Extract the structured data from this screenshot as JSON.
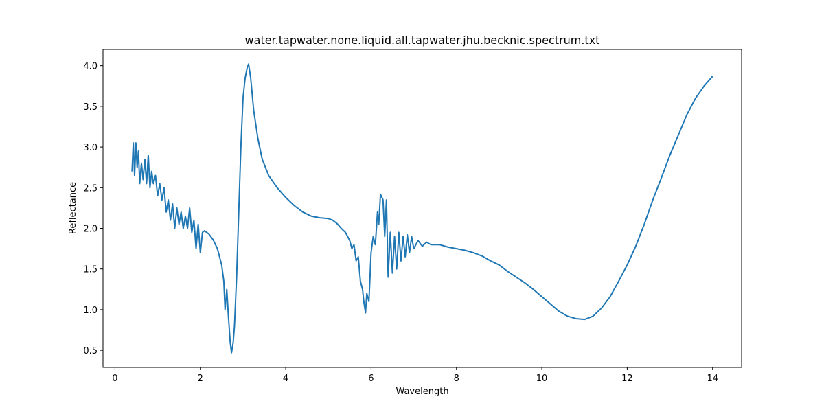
{
  "chart_data": {
    "type": "line",
    "title": "water.tapwater.none.liquid.all.tapwater.jhu.becknic.spectrum.txt",
    "x_label": "Wavelength",
    "y_label": "Reflectance",
    "color": "#1f77b4",
    "x": [
      0.4,
      0.43,
      0.46,
      0.49,
      0.52,
      0.55,
      0.58,
      0.62,
      0.66,
      0.7,
      0.74,
      0.78,
      0.82,
      0.86,
      0.9,
      0.95,
      1.0,
      1.05,
      1.1,
      1.15,
      1.2,
      1.25,
      1.3,
      1.35,
      1.4,
      1.45,
      1.5,
      1.55,
      1.6,
      1.65,
      1.7,
      1.75,
      1.8,
      1.85,
      1.9,
      1.95,
      2.0,
      2.05,
      2.1,
      2.2,
      2.3,
      2.4,
      2.5,
      2.55,
      2.58,
      2.62,
      2.66,
      2.7,
      2.73,
      2.77,
      2.8,
      2.85,
      2.9,
      2.95,
      3.0,
      3.05,
      3.1,
      3.13,
      3.18,
      3.25,
      3.35,
      3.45,
      3.6,
      3.8,
      4.0,
      4.2,
      4.4,
      4.6,
      4.8,
      5.0,
      5.1,
      5.2,
      5.3,
      5.4,
      5.5,
      5.55,
      5.6,
      5.65,
      5.7,
      5.75,
      5.8,
      5.83,
      5.87,
      5.9,
      5.95,
      6.0,
      6.05,
      6.1,
      6.15,
      6.18,
      6.22,
      6.28,
      6.32,
      6.36,
      6.4,
      6.45,
      6.5,
      6.55,
      6.6,
      6.65,
      6.7,
      6.75,
      6.8,
      6.85,
      6.9,
      6.95,
      7.0,
      7.1,
      7.2,
      7.3,
      7.4,
      7.6,
      7.8,
      8.0,
      8.2,
      8.4,
      8.6,
      8.8,
      9.0,
      9.2,
      9.4,
      9.6,
      9.8,
      10.0,
      10.2,
      10.4,
      10.6,
      10.8,
      11.0,
      11.2,
      11.4,
      11.6,
      11.8,
      12.0,
      12.2,
      12.4,
      12.6,
      12.8,
      13.0,
      13.2,
      13.4,
      13.6,
      13.8,
      14.0
    ],
    "values": [
      2.7,
      3.05,
      2.65,
      3.05,
      2.75,
      2.95,
      2.55,
      2.8,
      2.6,
      2.85,
      2.55,
      2.9,
      2.5,
      2.7,
      2.55,
      2.65,
      2.4,
      2.55,
      2.35,
      2.5,
      2.2,
      2.35,
      2.1,
      2.3,
      2.0,
      2.25,
      2.05,
      2.2,
      2.0,
      2.15,
      2.0,
      2.25,
      1.95,
      2.1,
      1.75,
      2.05,
      1.7,
      1.95,
      1.97,
      1.93,
      1.86,
      1.75,
      1.55,
      1.35,
      1.0,
      1.25,
      0.9,
      0.6,
      0.47,
      0.6,
      0.8,
      1.4,
      2.2,
      3.0,
      3.6,
      3.85,
      3.98,
      4.02,
      3.85,
      3.45,
      3.1,
      2.85,
      2.65,
      2.5,
      2.38,
      2.28,
      2.2,
      2.15,
      2.13,
      2.12,
      2.1,
      2.06,
      2.0,
      1.95,
      1.85,
      1.75,
      1.8,
      1.6,
      1.65,
      1.35,
      1.25,
      1.1,
      0.96,
      1.2,
      1.1,
      1.7,
      1.9,
      1.8,
      2.2,
      2.05,
      2.42,
      2.35,
      1.9,
      2.35,
      1.4,
      1.95,
      1.45,
      1.9,
      1.5,
      1.95,
      1.6,
      1.9,
      1.65,
      1.92,
      1.7,
      1.9,
      1.75,
      1.85,
      1.78,
      1.83,
      1.8,
      1.8,
      1.77,
      1.75,
      1.73,
      1.7,
      1.66,
      1.6,
      1.55,
      1.47,
      1.4,
      1.33,
      1.25,
      1.16,
      1.07,
      0.98,
      0.92,
      0.89,
      0.88,
      0.92,
      1.02,
      1.16,
      1.35,
      1.55,
      1.78,
      2.05,
      2.35,
      2.62,
      2.9,
      3.15,
      3.4,
      3.6,
      3.75,
      3.87
    ],
    "xlim": [
      -0.28,
      14.68
    ],
    "ylim": [
      0.29,
      4.2
    ],
    "xticks": [
      0,
      2,
      4,
      6,
      8,
      10,
      12,
      14
    ],
    "yticks": [
      0.5,
      {
        "value": 1,
        "label": "1.0"
      },
      1.5,
      {
        "value": 2,
        "label": "2.0"
      },
      2.5,
      {
        "value": 3,
        "label": "3.0"
      },
      3.5,
      {
        "value": 4,
        "label": "4.0"
      }
    ]
  }
}
